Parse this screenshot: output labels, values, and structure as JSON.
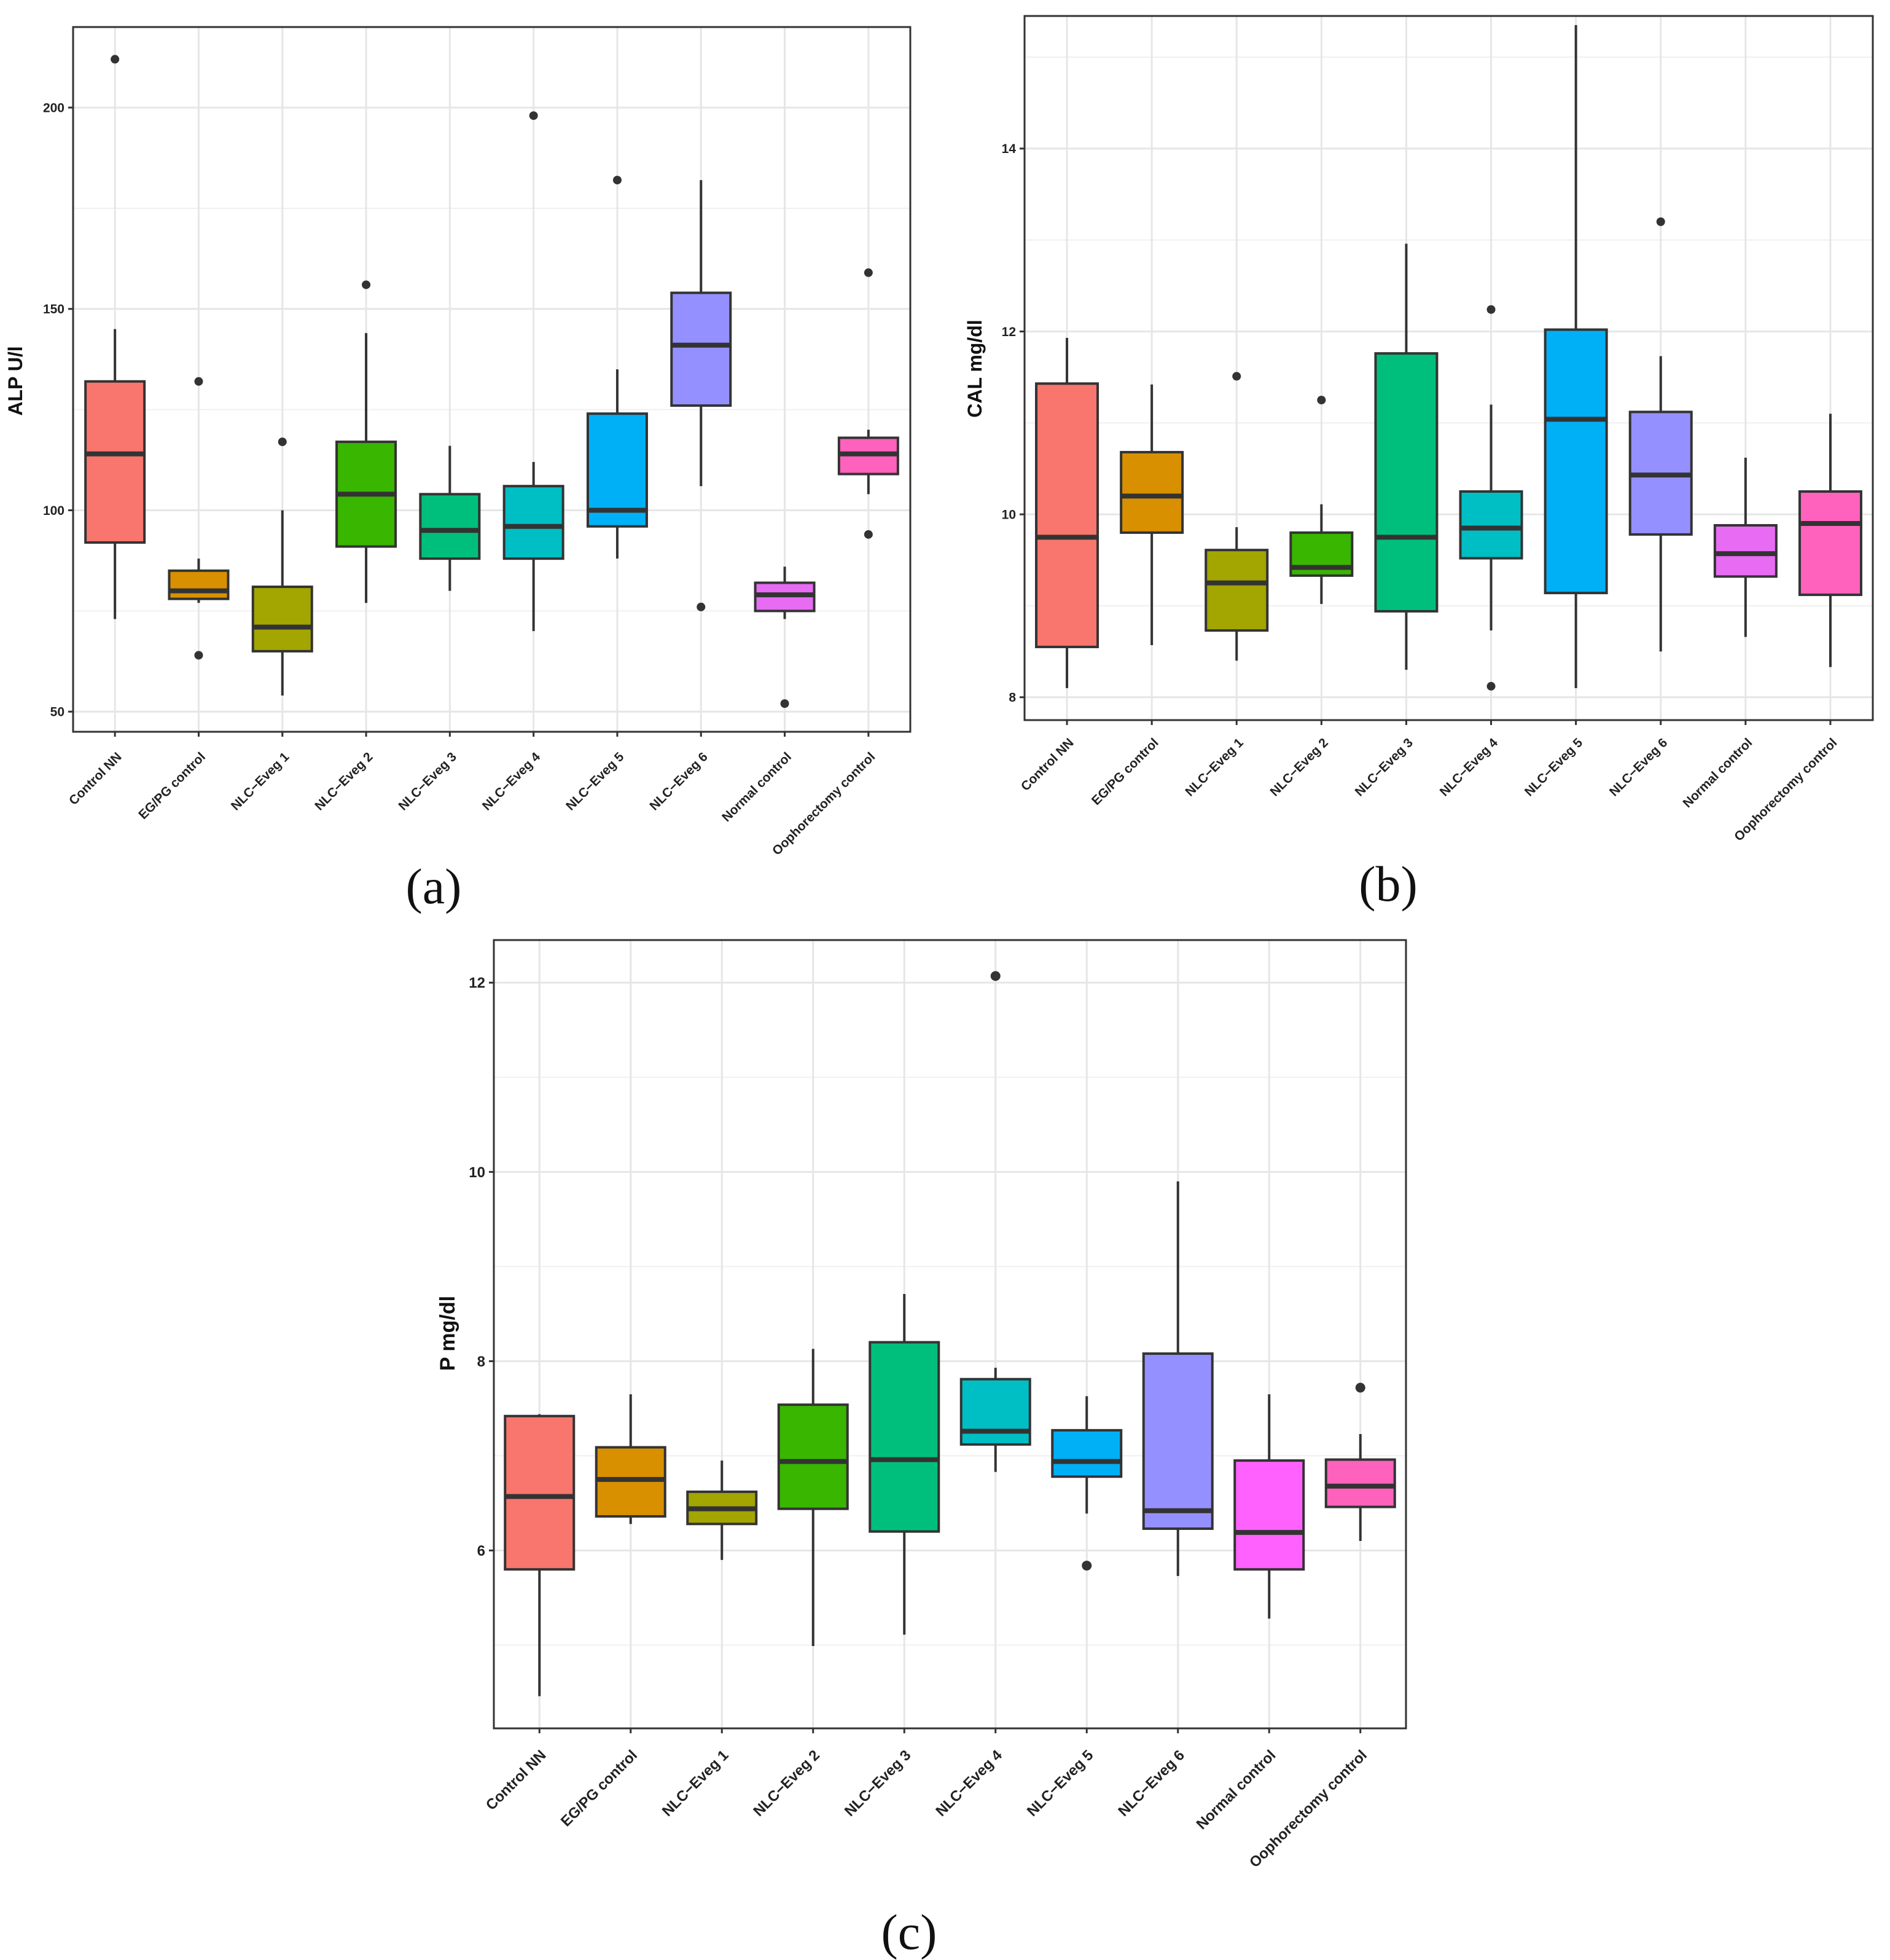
{
  "chart_data": [
    {
      "type": "boxplot",
      "panel_label": "(a)",
      "ylabel": "ALP U/l",
      "ylim": [
        45,
        220
      ],
      "yticks": [
        50,
        100,
        150,
        200
      ],
      "categories": [
        "Control NN",
        "EG/PG control",
        "NLC−Eveg 1",
        "NLC−Eveg 2",
        "NLC−Eveg 3",
        "NLC−Eveg 4",
        "NLC−Eveg 5",
        "NLC−Eveg 6",
        "Normal control",
        "Oophorectomy control"
      ],
      "boxes": [
        {
          "min": 73,
          "q1": 92,
          "median": 114,
          "q3": 132,
          "max": 145,
          "outliers": [
            212
          ]
        },
        {
          "min": 77,
          "q1": 78,
          "median": 80,
          "q3": 85,
          "max": 88,
          "outliers": [
            132,
            64
          ]
        },
        {
          "min": 54,
          "q1": 65,
          "median": 71,
          "q3": 81,
          "max": 100,
          "outliers": [
            117
          ]
        },
        {
          "min": 77,
          "q1": 91,
          "median": 104,
          "q3": 117,
          "max": 144,
          "outliers": [
            156
          ]
        },
        {
          "min": 80,
          "q1": 88,
          "median": 95,
          "q3": 104,
          "max": 116,
          "outliers": []
        },
        {
          "min": 70,
          "q1": 88,
          "median": 96,
          "q3": 106,
          "max": 112,
          "outliers": [
            198
          ]
        },
        {
          "min": 88,
          "q1": 96,
          "median": 100,
          "q3": 124,
          "max": 135,
          "outliers": [
            182
          ]
        },
        {
          "min": 106,
          "q1": 126,
          "median": 141,
          "q3": 154,
          "max": 182,
          "outliers": [
            76
          ]
        },
        {
          "min": 73,
          "q1": 75,
          "median": 79,
          "q3": 82,
          "max": 86,
          "outliers": [
            52
          ]
        },
        {
          "min": 104,
          "q1": 109,
          "median": 114,
          "q3": 118,
          "max": 120,
          "outliers": [
            159,
            94
          ]
        }
      ]
    },
    {
      "type": "boxplot",
      "panel_label": "(b)",
      "ylabel": "CAL mg/dl",
      "ylim": [
        7.75,
        15.45
      ],
      "yticks": [
        8,
        10,
        12,
        14
      ],
      "categories": [
        "Control NN",
        "EG/PG control",
        "NLC−Eveg 1",
        "NLC−Eveg 2",
        "NLC−Eveg 3",
        "NLC−Eveg 4",
        "NLC−Eveg 5",
        "NLC−Eveg 6",
        "Normal control",
        "Oophorectomy control"
      ],
      "boxes": [
        {
          "min": 8.1,
          "q1": 8.55,
          "median": 9.75,
          "q3": 11.43,
          "max": 11.93,
          "outliers": []
        },
        {
          "min": 8.57,
          "q1": 9.8,
          "median": 10.2,
          "q3": 10.68,
          "max": 11.42,
          "outliers": []
        },
        {
          "min": 8.4,
          "q1": 8.73,
          "median": 9.25,
          "q3": 9.61,
          "max": 9.86,
          "outliers": [
            11.51
          ]
        },
        {
          "min": 9.02,
          "q1": 9.33,
          "median": 9.42,
          "q3": 9.8,
          "max": 10.11,
          "outliers": [
            11.25
          ]
        },
        {
          "min": 8.3,
          "q1": 8.94,
          "median": 9.75,
          "q3": 11.76,
          "max": 12.96,
          "outliers": []
        },
        {
          "min": 8.73,
          "q1": 9.52,
          "median": 9.85,
          "q3": 10.25,
          "max": 11.2,
          "outliers": [
            12.24,
            8.12
          ]
        },
        {
          "min": 8.1,
          "q1": 9.14,
          "median": 11.04,
          "q3": 12.02,
          "max": 15.35,
          "outliers": []
        },
        {
          "min": 8.5,
          "q1": 9.78,
          "median": 10.43,
          "q3": 11.12,
          "max": 11.73,
          "outliers": [
            13.2
          ]
        },
        {
          "min": 8.66,
          "q1": 9.32,
          "median": 9.57,
          "q3": 9.88,
          "max": 10.62,
          "outliers": []
        },
        {
          "min": 8.33,
          "q1": 9.12,
          "median": 9.9,
          "q3": 10.25,
          "max": 11.1,
          "outliers": []
        }
      ]
    },
    {
      "type": "boxplot",
      "panel_label": "(c)",
      "ylabel": "P mg/dl",
      "ylim": [
        4.12,
        12.45
      ],
      "yticks": [
        6,
        8,
        10,
        12
      ],
      "categories": [
        "Control NN",
        "EG/PG control",
        "NLC−Eveg 1",
        "NLC−Eveg 2",
        "NLC−Eveg 3",
        "NLC−Eveg 4",
        "NLC−Eveg 5",
        "NLC−Eveg 6",
        "Normal control",
        "Oophorectomy control"
      ],
      "boxes": [
        {
          "min": 4.46,
          "q1": 5.8,
          "median": 6.57,
          "q3": 7.42,
          "max": 7.44,
          "outliers": []
        },
        {
          "min": 6.28,
          "q1": 6.36,
          "median": 6.75,
          "q3": 7.09,
          "max": 7.65,
          "outliers": []
        },
        {
          "min": 5.9,
          "q1": 6.28,
          "median": 6.44,
          "q3": 6.62,
          "max": 6.95,
          "outliers": []
        },
        {
          "min": 4.99,
          "q1": 6.44,
          "median": 6.94,
          "q3": 7.54,
          "max": 8.13,
          "outliers": []
        },
        {
          "min": 5.11,
          "q1": 6.2,
          "median": 6.96,
          "q3": 8.2,
          "max": 8.71,
          "outliers": []
        },
        {
          "min": 6.83,
          "q1": 7.12,
          "median": 7.26,
          "q3": 7.81,
          "max": 7.93,
          "outliers": [
            12.07
          ]
        },
        {
          "min": 6.39,
          "q1": 6.78,
          "median": 6.94,
          "q3": 7.27,
          "max": 7.63,
          "outliers": [
            5.84
          ]
        },
        {
          "min": 5.73,
          "q1": 6.23,
          "median": 6.42,
          "q3": 8.08,
          "max": 9.9,
          "outliers": []
        },
        {
          "min": 5.28,
          "q1": 5.8,
          "median": 6.19,
          "q3": 6.95,
          "max": 7.65,
          "outliers": []
        },
        {
          "min": 6.1,
          "q1": 6.46,
          "median": 6.68,
          "q3": 6.96,
          "max": 7.23,
          "outliers": [
            7.72
          ]
        }
      ]
    }
  ],
  "colors": [
    "#F8766D",
    "#D89000",
    "#A3A500",
    "#39B600",
    "#00BF7D",
    "#00BFC4",
    "#00B0F6",
    "#9590FF",
    "#E76BF3",
    "#FF62BC"
  ],
  "colors_c": [
    "#F8766D",
    "#D89000",
    "#A3A500",
    "#39B600",
    "#00BF7D",
    "#00BFC4",
    "#00B0F6",
    "#9590FF",
    "#FF61FF",
    "#FF62BC"
  ]
}
